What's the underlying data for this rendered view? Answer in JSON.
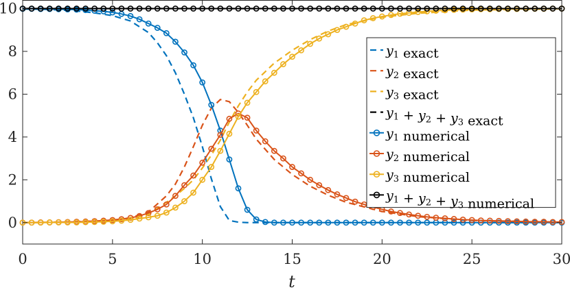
{
  "chart_data": {
    "type": "line",
    "xlabel": "t",
    "ylabel": "",
    "xlim": [
      0,
      30
    ],
    "ylim": [
      -1,
      10.4
    ],
    "xticks": [
      0,
      5,
      10,
      15,
      20,
      25,
      30
    ],
    "yticks": [
      0,
      2,
      4,
      6,
      8,
      10
    ],
    "grid": false,
    "legend_position": "right",
    "colors": {
      "y1": "#0072BD",
      "y2": "#D95319",
      "y3": "#EDB120",
      "sum": "#000000"
    },
    "series": [
      {
        "name": "y1 exact",
        "color": "#0072BD",
        "style": "dashed",
        "x": [
          0,
          1,
          2,
          3,
          4,
          5,
          6,
          7,
          7.5,
          8,
          8.5,
          9,
          9.5,
          10,
          10.5,
          11,
          11.5,
          12,
          12.5,
          13,
          14,
          15,
          20,
          25,
          30
        ],
        "y": [
          9.98,
          9.97,
          9.94,
          9.89,
          9.8,
          9.67,
          9.42,
          8.88,
          8.4,
          7.8,
          7.0,
          6.0,
          4.9,
          3.55,
          2.05,
          0.75,
          0.1,
          0.02,
          0,
          0,
          0,
          0,
          0,
          0,
          0
        ]
      },
      {
        "name": "y2 exact",
        "color": "#D95319",
        "style": "dashed",
        "x": [
          0,
          2,
          4,
          5,
          6,
          7,
          8,
          8.5,
          9,
          9.5,
          10,
          10.5,
          11,
          11.5,
          12,
          12.5,
          13,
          14,
          15,
          16,
          17,
          18,
          20,
          22,
          25,
          30
        ],
        "y": [
          0,
          0.02,
          0.07,
          0.12,
          0.22,
          0.5,
          1.25,
          1.8,
          2.6,
          3.55,
          4.55,
          5.35,
          5.75,
          5.65,
          5.15,
          4.55,
          3.9,
          2.95,
          2.25,
          1.7,
          1.28,
          0.95,
          0.52,
          0.28,
          0.1,
          0.02
        ]
      },
      {
        "name": "y3 exact",
        "color": "#EDB120",
        "style": "dashed",
        "x": [
          0,
          4,
          6,
          7,
          8,
          8.5,
          9,
          9.5,
          10,
          10.5,
          11,
          11.5,
          12,
          12.5,
          13,
          14,
          15,
          16,
          17,
          18,
          20,
          22,
          25,
          30
        ],
        "y": [
          0,
          0.03,
          0.15,
          0.4,
          0.95,
          1.25,
          1.6,
          2.0,
          2.55,
          3.15,
          3.85,
          4.7,
          5.45,
          6.1,
          6.65,
          7.45,
          8.05,
          8.55,
          8.95,
          9.25,
          9.6,
          9.78,
          9.93,
          9.99
        ]
      },
      {
        "name": "y1 + y2 + y3 exact",
        "color": "#000000",
        "style": "dashed",
        "x": [
          0,
          30
        ],
        "y": [
          10,
          10
        ]
      },
      {
        "name": "y1 numerical",
        "color": "#0072BD",
        "style": "solid-markers",
        "x": [
          0,
          0.5,
          1,
          1.5,
          2,
          2.5,
          3,
          3.5,
          4,
          4.5,
          5,
          5.5,
          6,
          6.5,
          7,
          7.5,
          8,
          8.5,
          9,
          9.5,
          10,
          10.5,
          11,
          11.5,
          12,
          12.5,
          13,
          13.5,
          14,
          14.5,
          15,
          15.5,
          16,
          16.5,
          17,
          17.5,
          18,
          18.5,
          19,
          19.5,
          20,
          20.5,
          21,
          21.5,
          22,
          22.5,
          23,
          23.5,
          24,
          24.5,
          25,
          25.5,
          26,
          26.5,
          27,
          27.5,
          28,
          28.5,
          29,
          29.5,
          30
        ],
        "y": [
          9.99,
          9.99,
          9.98,
          9.98,
          9.97,
          9.96,
          9.95,
          9.93,
          9.9,
          9.87,
          9.82,
          9.75,
          9.65,
          9.5,
          9.3,
          9.1,
          8.85,
          8.45,
          7.95,
          7.35,
          6.55,
          5.5,
          4.3,
          2.95,
          1.6,
          0.6,
          0.15,
          0.03,
          0,
          0,
          0,
          0,
          0,
          0,
          0,
          0,
          0,
          0,
          0,
          0,
          0,
          0,
          0,
          0,
          0,
          0,
          0,
          0,
          0,
          0,
          0,
          0,
          0,
          0,
          0,
          0,
          0,
          0,
          0,
          0,
          0
        ]
      },
      {
        "name": "y2 numerical",
        "color": "#D95319",
        "style": "solid-markers",
        "x": [
          0,
          0.5,
          1,
          1.5,
          2,
          2.5,
          3,
          3.5,
          4,
          4.5,
          5,
          5.5,
          6,
          6.5,
          7,
          7.5,
          8,
          8.5,
          9,
          9.5,
          10,
          10.5,
          11,
          11.5,
          12,
          12.5,
          13,
          13.5,
          14,
          14.5,
          15,
          15.5,
          16,
          16.5,
          17,
          17.5,
          18,
          18.5,
          19,
          19.5,
          20,
          20.5,
          21,
          21.5,
          22,
          22.5,
          23,
          23.5,
          24,
          24.5,
          25,
          25.5,
          26,
          26.5,
          27,
          27.5,
          28,
          28.5,
          29,
          29.5,
          30
        ],
        "y": [
          0,
          0,
          0.01,
          0.01,
          0.02,
          0.03,
          0.04,
          0.05,
          0.07,
          0.09,
          0.12,
          0.16,
          0.22,
          0.31,
          0.45,
          0.62,
          0.85,
          1.25,
          1.75,
          2.2,
          2.8,
          3.45,
          4.1,
          4.85,
          5.1,
          4.9,
          4.3,
          3.8,
          3.35,
          3.0,
          2.6,
          2.3,
          2.0,
          1.75,
          1.52,
          1.32,
          1.15,
          0.98,
          0.85,
          0.73,
          0.62,
          0.52,
          0.45,
          0.38,
          0.32,
          0.27,
          0.23,
          0.2,
          0.17,
          0.14,
          0.12,
          0.1,
          0.09,
          0.08,
          0.07,
          0.06,
          0.05,
          0.04,
          0.04,
          0.03,
          0.03
        ]
      },
      {
        "name": "y3 numerical",
        "color": "#EDB120",
        "style": "solid-markers",
        "x": [
          0,
          0.5,
          1,
          1.5,
          2,
          2.5,
          3,
          3.5,
          4,
          4.5,
          5,
          5.5,
          6,
          6.5,
          7,
          7.5,
          8,
          8.5,
          9,
          9.5,
          10,
          10.5,
          11,
          11.5,
          12,
          12.5,
          13,
          13.5,
          14,
          14.5,
          15,
          15.5,
          16,
          16.5,
          17,
          17.5,
          18,
          18.5,
          19,
          19.5,
          20,
          20.5,
          21,
          21.5,
          22,
          22.5,
          23,
          23.5,
          24,
          24.5,
          25,
          25.5,
          26,
          26.5,
          27,
          27.5,
          28,
          28.5,
          29,
          29.5,
          30
        ],
        "y": [
          0,
          0,
          0,
          0.01,
          0.01,
          0.01,
          0.01,
          0.02,
          0.03,
          0.04,
          0.06,
          0.09,
          0.13,
          0.19,
          0.25,
          0.32,
          0.47,
          0.7,
          1.0,
          1.4,
          2.0,
          2.6,
          3.35,
          4.15,
          4.95,
          5.6,
          6.1,
          6.6,
          7.0,
          7.4,
          7.75,
          8.05,
          8.35,
          8.6,
          8.8,
          9.0,
          9.15,
          9.3,
          9.45,
          9.55,
          9.63,
          9.7,
          9.76,
          9.8,
          9.84,
          9.87,
          9.9,
          9.92,
          9.94,
          9.95,
          9.96,
          9.97,
          9.97,
          9.98,
          9.98,
          9.98,
          9.99,
          9.99,
          9.99,
          10,
          10
        ]
      },
      {
        "name": "y1 + y2 + y3 numerical",
        "color": "#000000",
        "style": "solid-markers",
        "x": [
          0,
          0.5,
          1,
          1.5,
          2,
          2.5,
          3,
          3.5,
          4,
          4.5,
          5,
          5.5,
          6,
          6.5,
          7,
          7.5,
          8,
          8.5,
          9,
          9.5,
          10,
          10.5,
          11,
          11.5,
          12,
          12.5,
          13,
          13.5,
          14,
          14.5,
          15,
          15.5,
          16,
          16.5,
          17,
          17.5,
          18,
          18.5,
          19,
          19.5,
          20,
          20.5,
          21,
          21.5,
          22,
          22.5,
          23,
          23.5,
          24,
          24.5,
          25,
          25.5,
          26,
          26.5,
          27,
          27.5,
          28,
          28.5,
          29,
          29.5,
          30
        ],
        "y": [
          10,
          10,
          10,
          10,
          10,
          10,
          10,
          10,
          10,
          10,
          10,
          10,
          10,
          10,
          10,
          10,
          10,
          10,
          10,
          10,
          10,
          10,
          10,
          10,
          10,
          10,
          10,
          10,
          10,
          10,
          10,
          10,
          10,
          10,
          10,
          10,
          10,
          10,
          10,
          10,
          10,
          10,
          10,
          10,
          10,
          10,
          10,
          10,
          10,
          10,
          10,
          10,
          10,
          10,
          10,
          10,
          10,
          10,
          10,
          10,
          10
        ]
      }
    ],
    "legend": [
      {
        "var": [
          "y",
          "1"
        ],
        "text": " exact",
        "color": "#0072BD",
        "style": "dashed"
      },
      {
        "var": [
          "y",
          "2"
        ],
        "text": " exact",
        "color": "#D95319",
        "style": "dashed"
      },
      {
        "var": [
          "y",
          "3"
        ],
        "text": " exact",
        "color": "#EDB120",
        "style": "dashed"
      },
      {
        "var": [
          "y",
          "1",
          " + ",
          "y",
          "2",
          " + ",
          "y",
          "3"
        ],
        "text": " exact",
        "color": "#000000",
        "style": "dashed"
      },
      {
        "var": [
          "y",
          "1"
        ],
        "text": " numerical",
        "color": "#0072BD",
        "style": "solid-markers"
      },
      {
        "var": [
          "y",
          "2"
        ],
        "text": " numerical",
        "color": "#D95319",
        "style": "solid-markers"
      },
      {
        "var": [
          "y",
          "3"
        ],
        "text": " numerical",
        "color": "#EDB120",
        "style": "solid-markers"
      },
      {
        "var": [
          "y",
          "1",
          " + ",
          "y",
          "2",
          " + ",
          "y",
          "3"
        ],
        "text": " numerical",
        "color": "#000000",
        "style": "solid-markers"
      }
    ]
  }
}
